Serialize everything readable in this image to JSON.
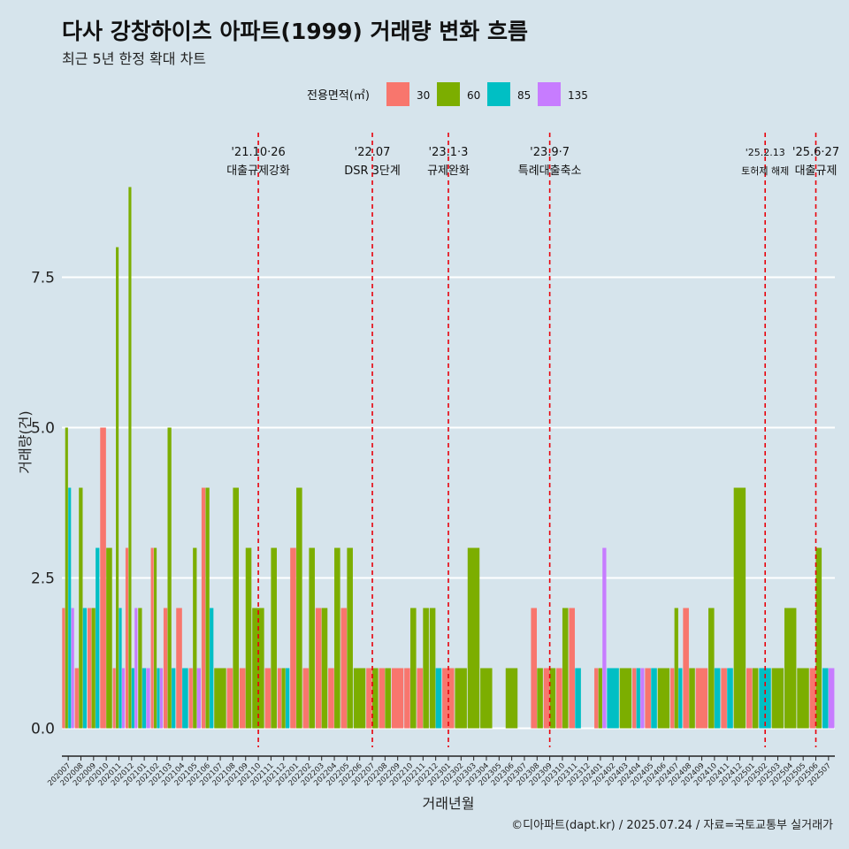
{
  "header": {
    "title": "다사 강창하이츠 아파트(1999) 거래량 변화 흐름",
    "subtitle": "최근 5년 한정 확대 차트"
  },
  "caption": "©디아파트(dapt.kr) / 2025.07.24 / 자료=국토교통부 실거래가",
  "chart_data": {
    "type": "bar",
    "xlabel": "거래년월",
    "ylabel": "거래량(건)",
    "ylim": [
      -0.5,
      9.3
    ],
    "yticks": [
      0.0,
      2.5,
      5.0,
      7.5
    ],
    "ytick_labels": [
      "0.0",
      "2.5",
      "5.0",
      "7.5"
    ],
    "grid": true,
    "legend": {
      "title": "전용면적(㎡)",
      "position": "top",
      "items": [
        {
          "name": "30",
          "color": "#F8766D"
        },
        {
          "name": "60",
          "color": "#7CAE00"
        },
        {
          "name": "85",
          "color": "#00BFC4"
        },
        {
          "name": "135",
          "color": "#C77CFF"
        }
      ]
    },
    "months": [
      "202007",
      "202008",
      "202009",
      "202010",
      "202011",
      "202012",
      "202101",
      "202102",
      "202103",
      "202104",
      "202105",
      "202106",
      "202107",
      "202108",
      "202109",
      "202110",
      "202111",
      "202112",
      "202201",
      "202202",
      "202203",
      "202204",
      "202205",
      "202206",
      "202207",
      "202208",
      "202209",
      "202210",
      "202211",
      "202212",
      "202301",
      "202302",
      "202303",
      "202304",
      "202305",
      "202306",
      "202307",
      "202308",
      "202309",
      "202310",
      "202311",
      "202312",
      "202401",
      "202402",
      "202403",
      "202404",
      "202405",
      "202406",
      "202407",
      "202408",
      "202409",
      "202410",
      "202411",
      "202412",
      "202501",
      "202502",
      "202503",
      "202504",
      "202505",
      "202506",
      "202507"
    ],
    "tick_labels": [
      "202007",
      "202008",
      "202009",
      "202010",
      "202011",
      "202012",
      "202101",
      "202102",
      "202103",
      "202104",
      "202105",
      "202106",
      "202107",
      "202108",
      "202109",
      "202110",
      "202111",
      "202112",
      "202201",
      "202202",
      "202203",
      "202204",
      "202205",
      "202206",
      "202207",
      "202208",
      "202209",
      "202210",
      "202211",
      "202212",
      "202301",
      "202302",
      "202303",
      "202304",
      "202305",
      "202306",
      "202307",
      "202308",
      "202309",
      "202310",
      "202311",
      "202312",
      "202401",
      "202402",
      "202403",
      "202404",
      "202405",
      "202406",
      "202407",
      "202408",
      "202409",
      "202410",
      "202411",
      "202412",
      "202501",
      "202502",
      "202503",
      "202504",
      "202505",
      "202506",
      "202507"
    ],
    "bars": [
      {
        "month": "202007",
        "values": {
          "30": 2,
          "60": 5,
          "85": 4,
          "135": 2
        }
      },
      {
        "month": "202008",
        "values": {
          "30": 1,
          "60": 4,
          "85": 2
        }
      },
      {
        "month": "202009",
        "values": {
          "30": 2,
          "60": 2,
          "85": 3
        }
      },
      {
        "month": "202010",
        "values": {
          "30": 5,
          "60": 3
        }
      },
      {
        "month": "202011",
        "values": {
          "30": 1,
          "60": 8,
          "85": 2,
          "135": 1
        }
      },
      {
        "month": "202012",
        "values": {
          "30": 3,
          "60": 9,
          "85": 1,
          "135": 2
        }
      },
      {
        "month": "202101",
        "values": {
          "60": 2,
          "85": 1,
          "135": 1
        }
      },
      {
        "month": "202102",
        "values": {
          "30": 3,
          "60": 3,
          "85": 1,
          "135": 1
        }
      },
      {
        "month": "202103",
        "values": {
          "30": 2,
          "60": 5,
          "85": 1
        }
      },
      {
        "month": "202104",
        "values": {
          "30": 2,
          "85": 1
        }
      },
      {
        "month": "202105",
        "values": {
          "30": 1,
          "60": 3,
          "135": 1
        }
      },
      {
        "month": "202106",
        "values": {
          "30": 4,
          "60": 4,
          "85": 2
        }
      },
      {
        "month": "202107",
        "values": {
          "60": 1
        }
      },
      {
        "month": "202108",
        "values": {
          "30": 1,
          "60": 4
        }
      },
      {
        "month": "202109",
        "values": {
          "30": 1,
          "60": 3
        }
      },
      {
        "month": "202110",
        "values": {
          "60": 2
        }
      },
      {
        "month": "202111",
        "values": {
          "30": 1,
          "60": 3
        }
      },
      {
        "month": "202112",
        "values": {
          "30": 1,
          "60": 1,
          "85": 1
        }
      },
      {
        "month": "202201",
        "values": {
          "30": 3,
          "60": 4
        }
      },
      {
        "month": "202202",
        "values": {
          "30": 1,
          "60": 3
        }
      },
      {
        "month": "202203",
        "values": {
          "30": 2,
          "60": 2
        }
      },
      {
        "month": "202204",
        "values": {
          "30": 1,
          "60": 3
        }
      },
      {
        "month": "202205",
        "values": {
          "30": 2,
          "60": 3
        }
      },
      {
        "month": "202206",
        "values": {
          "60": 1
        }
      },
      {
        "month": "202207",
        "values": {
          "30": 1,
          "60": 1
        }
      },
      {
        "month": "202208",
        "values": {
          "30": 1,
          "60": 1
        }
      },
      {
        "month": "202209",
        "values": {
          "30": 1
        }
      },
      {
        "month": "202210",
        "values": {
          "30": 1,
          "60": 2
        }
      },
      {
        "month": "202211",
        "values": {
          "30": 1,
          "60": 2
        }
      },
      {
        "month": "202212",
        "values": {
          "60": 2,
          "85": 1
        }
      },
      {
        "month": "202301",
        "values": {
          "30": 1
        }
      },
      {
        "month": "202302",
        "values": {
          "60": 1
        }
      },
      {
        "month": "202303",
        "values": {
          "60": 3
        }
      },
      {
        "month": "202304",
        "values": {
          "60": 1
        }
      },
      {
        "month": "202305",
        "values": {}
      },
      {
        "month": "202306",
        "values": {
          "60": 1
        }
      },
      {
        "month": "202307",
        "values": {}
      },
      {
        "month": "202308",
        "values": {
          "30": 2,
          "60": 1
        }
      },
      {
        "month": "202309",
        "values": {
          "30": 1,
          "60": 1
        }
      },
      {
        "month": "202310",
        "values": {
          "30": 1,
          "60": 2
        }
      },
      {
        "month": "202311",
        "values": {
          "30": 2,
          "85": 1
        }
      },
      {
        "month": "202312",
        "values": {}
      },
      {
        "month": "202401",
        "values": {
          "30": 1,
          "60": 1,
          "135": 3
        }
      },
      {
        "month": "202402",
        "values": {
          "85": 1
        }
      },
      {
        "month": "202403",
        "values": {
          "60": 1
        }
      },
      {
        "month": "202404",
        "values": {
          "30": 1,
          "85": 1,
          "135": 1
        }
      },
      {
        "month": "202405",
        "values": {
          "30": 1,
          "85": 1
        }
      },
      {
        "month": "202406",
        "values": {
          "60": 1
        }
      },
      {
        "month": "202407",
        "values": {
          "30": 1,
          "60": 2,
          "85": 1
        }
      },
      {
        "month": "202408",
        "values": {
          "30": 2,
          "60": 1
        }
      },
      {
        "month": "202409",
        "values": {
          "30": 1
        }
      },
      {
        "month": "202410",
        "values": {
          "60": 2,
          "85": 1
        }
      },
      {
        "month": "202411",
        "values": {
          "30": 1,
          "85": 1
        }
      },
      {
        "month": "202412",
        "values": {
          "60": 4
        }
      },
      {
        "month": "202501",
        "values": {
          "30": 1,
          "60": 1
        }
      },
      {
        "month": "202502",
        "values": {
          "85": 1
        }
      },
      {
        "month": "202503",
        "values": {
          "60": 1
        }
      },
      {
        "month": "202504",
        "values": {
          "60": 2
        }
      },
      {
        "month": "202505",
        "values": {
          "60": 1
        }
      },
      {
        "month": "202506",
        "values": {
          "30": 1,
          "60": 3
        }
      },
      {
        "month": "202507",
        "values": {
          "85": 1,
          "135": 1
        }
      }
    ],
    "events": [
      {
        "month": "202110",
        "date": "'21.10·26",
        "label": "대출규제강화",
        "size": "normal"
      },
      {
        "month": "202207",
        "date": "'22.07",
        "label": "DSR 3단계",
        "size": "normal"
      },
      {
        "month": "202301",
        "date": "'23.1·3",
        "label": "규제완화",
        "size": "normal"
      },
      {
        "month": "202309",
        "date": "'23.9·7",
        "label": "특례대출축소",
        "size": "normal"
      },
      {
        "month": "202502",
        "date": "'25.2.13",
        "label": "토허제 해제",
        "size": "small"
      },
      {
        "month": "202506",
        "date": "'25.6·27",
        "label": "대출규제",
        "size": "normal"
      }
    ]
  }
}
